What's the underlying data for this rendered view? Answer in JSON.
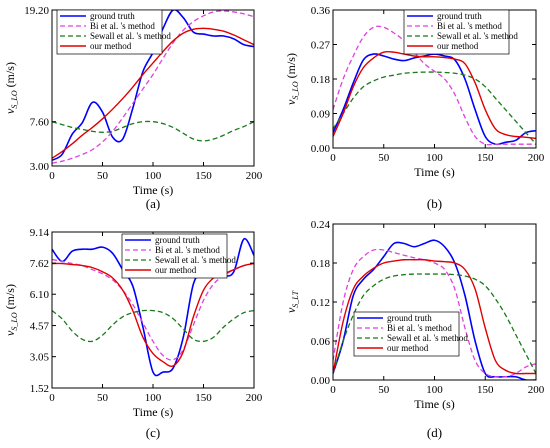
{
  "chart_data": [
    {
      "type": "line",
      "panel_label": "(a)",
      "xlabel": "Time (s)",
      "ylabel_main": "v",
      "ylabel_sub": "S_LO",
      "ylabel_unit": " (m/s)",
      "xlim": [
        0,
        200
      ],
      "ylim": [
        3.0,
        19.2
      ],
      "xticks": [
        "0",
        "50",
        "100",
        "150",
        "200"
      ],
      "yticks": [
        "3.00",
        "7.60",
        "19.20"
      ],
      "ytick_values": [
        3.0,
        7.6,
        19.2
      ],
      "legend_position": "top-left",
      "x": [
        0,
        10,
        20,
        30,
        40,
        50,
        60,
        70,
        80,
        90,
        100,
        110,
        120,
        130,
        140,
        150,
        160,
        170,
        180,
        190,
        200
      ],
      "series": [
        {
          "name": "ground truth",
          "values": [
            3.6,
            4.2,
            6.3,
            7.5,
            9.6,
            8.6,
            6.0,
            5.8,
            9.0,
            12.8,
            14.8,
            17.3,
            19.2,
            18.4,
            16.9,
            16.7,
            16.5,
            16.5,
            16.2,
            15.6,
            15.4
          ]
        },
        {
          "name": "Bi et al. 's method",
          "values": [
            3.3,
            3.5,
            3.8,
            4.2,
            4.7,
            5.5,
            6.6,
            8.0,
            9.5,
            11.0,
            12.5,
            14.2,
            15.8,
            17.1,
            18.0,
            18.6,
            19.0,
            19.1,
            19.0,
            18.8,
            18.5
          ]
        },
        {
          "name": "Sewall et al. 's method",
          "values": [
            7.6,
            7.3,
            7.0,
            6.8,
            6.6,
            6.5,
            6.6,
            7.0,
            7.4,
            7.6,
            7.6,
            7.4,
            7.0,
            6.4,
            5.8,
            5.6,
            5.8,
            6.2,
            6.7,
            7.1,
            7.6
          ]
        },
        {
          "name": "our method",
          "values": [
            3.8,
            4.5,
            5.3,
            6.2,
            7.0,
            7.9,
            8.9,
            10.0,
            11.2,
            12.5,
            13.7,
            14.9,
            16.0,
            16.8,
            17.2,
            17.3,
            17.2,
            17.0,
            16.6,
            16.1,
            15.6
          ]
        }
      ]
    },
    {
      "type": "line",
      "panel_label": "(b)",
      "xlabel": "Time (s)",
      "ylabel_main": "v",
      "ylabel_sub": "S_LO",
      "ylabel_unit": " (m/s)",
      "xlim": [
        0,
        200
      ],
      "ylim": [
        0,
        0.36
      ],
      "xticks": [
        "0",
        "50",
        "100",
        "150",
        "200"
      ],
      "yticks": [
        "0.00",
        "0.09",
        "0.18",
        "0.27",
        "0.36"
      ],
      "ytick_values": [
        0,
        0.09,
        0.18,
        0.27,
        0.36
      ],
      "legend_position": "top-right",
      "x": [
        0,
        10,
        20,
        30,
        40,
        50,
        60,
        70,
        80,
        90,
        100,
        110,
        120,
        130,
        140,
        150,
        160,
        170,
        180,
        190,
        200
      ],
      "series": [
        {
          "name": "ground truth",
          "values": [
            0.04,
            0.1,
            0.17,
            0.23,
            0.245,
            0.24,
            0.232,
            0.228,
            0.235,
            0.24,
            0.245,
            0.24,
            0.23,
            0.18,
            0.1,
            0.03,
            0.01,
            0.015,
            0.02,
            0.04,
            0.045
          ]
        },
        {
          "name": "Bi et al. 's method",
          "values": [
            0.1,
            0.18,
            0.24,
            0.29,
            0.315,
            0.315,
            0.3,
            0.28,
            0.25,
            0.22,
            0.2,
            0.18,
            0.14,
            0.08,
            0.03,
            0.01,
            0.01,
            0.01,
            0.01,
            0.01,
            0.01
          ]
        },
        {
          "name": "Sewall et al. 's method",
          "values": [
            0.05,
            0.09,
            0.13,
            0.16,
            0.175,
            0.185,
            0.19,
            0.195,
            0.197,
            0.198,
            0.198,
            0.197,
            0.195,
            0.19,
            0.18,
            0.16,
            0.13,
            0.1,
            0.07,
            0.04,
            0.01
          ]
        },
        {
          "name": "our method",
          "values": [
            0.03,
            0.09,
            0.16,
            0.21,
            0.235,
            0.25,
            0.25,
            0.245,
            0.24,
            0.238,
            0.238,
            0.236,
            0.232,
            0.22,
            0.17,
            0.1,
            0.05,
            0.035,
            0.03,
            0.028,
            0.025
          ]
        }
      ]
    },
    {
      "type": "line",
      "panel_label": "(c)",
      "xlabel": "Time (s)",
      "ylabel_main": "v",
      "ylabel_sub": "S_LO",
      "ylabel_unit": " (m/s)",
      "xlim": [
        0,
        200
      ],
      "ylim": [
        1.52,
        9.14
      ],
      "xticks": [
        "0",
        "50",
        "100",
        "150",
        "200"
      ],
      "yticks": [
        "1.52",
        "3.05",
        "4.57",
        "6.10",
        "7.62",
        "9.14"
      ],
      "ytick_values": [
        1.52,
        3.05,
        4.57,
        6.1,
        7.62,
        9.14
      ],
      "legend_position": "top-right",
      "x": [
        0,
        10,
        20,
        30,
        40,
        50,
        60,
        70,
        80,
        90,
        100,
        110,
        120,
        130,
        140,
        150,
        160,
        170,
        180,
        190,
        200
      ],
      "series": [
        {
          "name": "ground truth",
          "values": [
            8.3,
            7.7,
            8.2,
            8.3,
            8.3,
            8.4,
            8.1,
            7.3,
            6.5,
            4.5,
            2.3,
            2.3,
            2.5,
            4.0,
            6.6,
            7.2,
            7.1,
            7.0,
            7.2,
            8.8,
            8.0
          ]
        },
        {
          "name": "Bi et al. 's method",
          "values": [
            7.8,
            7.7,
            7.6,
            7.5,
            7.3,
            7.1,
            6.8,
            6.3,
            5.6,
            4.7,
            3.8,
            3.1,
            2.9,
            3.4,
            4.6,
            5.8,
            6.6,
            7.0,
            7.3,
            7.5,
            7.6
          ]
        },
        {
          "name": "Sewall et al. 's method",
          "values": [
            5.3,
            4.9,
            4.3,
            3.9,
            3.8,
            4.1,
            4.6,
            5.0,
            5.2,
            5.3,
            5.3,
            5.2,
            4.9,
            4.4,
            3.9,
            3.8,
            4.0,
            4.5,
            4.9,
            5.2,
            5.3
          ]
        },
        {
          "name": "our method",
          "values": [
            7.6,
            7.6,
            7.55,
            7.5,
            7.4,
            7.2,
            6.9,
            6.3,
            5.3,
            4.0,
            3.2,
            2.8,
            2.6,
            3.3,
            5.0,
            6.3,
            6.9,
            7.1,
            7.3,
            7.5,
            7.6
          ]
        }
      ]
    },
    {
      "type": "line",
      "panel_label": "(d)",
      "xlabel": "Time (s)",
      "ylabel_main": "v",
      "ylabel_sub": "S_LT",
      "ylabel_unit": "",
      "xlim": [
        0,
        200
      ],
      "ylim": [
        0,
        0.24
      ],
      "xticks": [
        "0",
        "50",
        "100",
        "150",
        "200"
      ],
      "yticks": [
        "0.00",
        "0.06",
        "0.12",
        "0.18",
        "0.24"
      ],
      "ytick_values": [
        0,
        0.06,
        0.12,
        0.18,
        0.24
      ],
      "legend_position": "bottom-center",
      "x": [
        0,
        10,
        20,
        30,
        40,
        50,
        60,
        70,
        80,
        90,
        100,
        110,
        120,
        130,
        140,
        150,
        160,
        170,
        180,
        190,
        200
      ],
      "series": [
        {
          "name": "ground truth",
          "values": [
            0.01,
            0.06,
            0.13,
            0.155,
            0.17,
            0.19,
            0.21,
            0.21,
            0.205,
            0.21,
            0.215,
            0.205,
            0.18,
            0.13,
            0.06,
            0.01,
            0.005,
            0.005,
            0.005,
            0.0,
            0.0
          ]
        },
        {
          "name": "Bi et al. 's method",
          "values": [
            0.03,
            0.12,
            0.17,
            0.19,
            0.2,
            0.2,
            0.196,
            0.192,
            0.188,
            0.185,
            0.18,
            0.17,
            0.14,
            0.08,
            0.03,
            0.01,
            0.005,
            0.005,
            0.01,
            0.02,
            0.025
          ]
        },
        {
          "name": "Sewall et al. 's method",
          "values": [
            0.01,
            0.06,
            0.1,
            0.13,
            0.145,
            0.155,
            0.16,
            0.162,
            0.163,
            0.163,
            0.163,
            0.163,
            0.162,
            0.16,
            0.155,
            0.145,
            0.125,
            0.1,
            0.07,
            0.04,
            0.01
          ]
        },
        {
          "name": "our method",
          "values": [
            0.01,
            0.09,
            0.14,
            0.16,
            0.172,
            0.18,
            0.183,
            0.185,
            0.185,
            0.185,
            0.183,
            0.182,
            0.18,
            0.17,
            0.14,
            0.08,
            0.03,
            0.015,
            0.01,
            0.01,
            0.01
          ]
        }
      ]
    }
  ],
  "styles": {
    "ground_truth_color": "#0000ff",
    "bi_color": "#e040e0",
    "sewall_color": "#1a7a1a",
    "ours_color": "#e00000"
  }
}
